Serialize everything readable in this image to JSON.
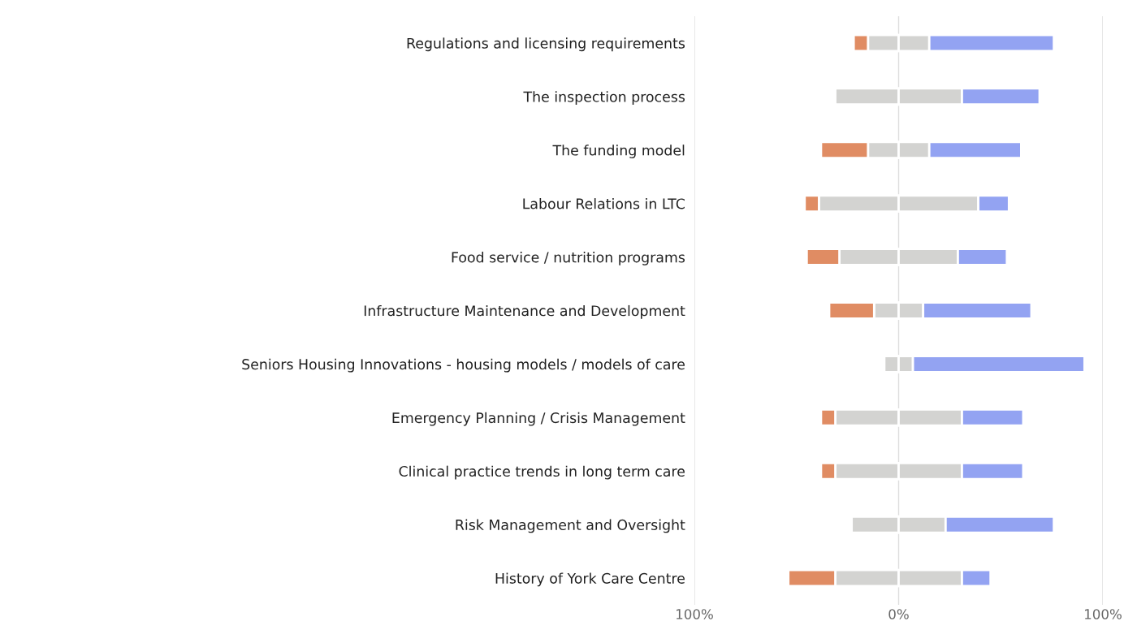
{
  "chart_data": {
    "type": "bar",
    "orientation": "horizontal",
    "stacked": true,
    "categories": [
      "Regulations and licensing requirements",
      "The inspection process",
      "The funding model",
      "Labour Relations in LTC",
      "Food service / nutrition programs",
      "Infrastructure Maintenance and Development",
      "Seniors Housing Innovations - housing models / models of care",
      "Emergency Planning / Crisis Management",
      "Clinical practice trends in long term care",
      "Risk Management and Oversight",
      "History of York Care Centre"
    ],
    "series": [
      {
        "color": "#d3d3d1",
        "values": [
          -15,
          -31,
          -15,
          -39,
          -29,
          -12,
          -7,
          -31,
          -31,
          -23,
          -31
        ]
      },
      {
        "color": "#e08c63",
        "values": [
          -7,
          0,
          -23,
          -7,
          -16,
          -22,
          0,
          -7,
          -7,
          0,
          -23
        ]
      },
      {
        "color": "#d3d3d1",
        "values": [
          15,
          31,
          15,
          39,
          29,
          12,
          7,
          31,
          31,
          23,
          31
        ]
      },
      {
        "color": "#93a3f2",
        "values": [
          61,
          38,
          45,
          15,
          24,
          53,
          84,
          30,
          30,
          53,
          14
        ]
      }
    ],
    "xlim": [
      -100,
      100
    ],
    "xticks": [
      {
        "value": -100,
        "label": "100%"
      },
      {
        "value": 0,
        "label": "0%"
      },
      {
        "value": 100,
        "label": "100%"
      }
    ],
    "grid": "x",
    "legend": false
  }
}
